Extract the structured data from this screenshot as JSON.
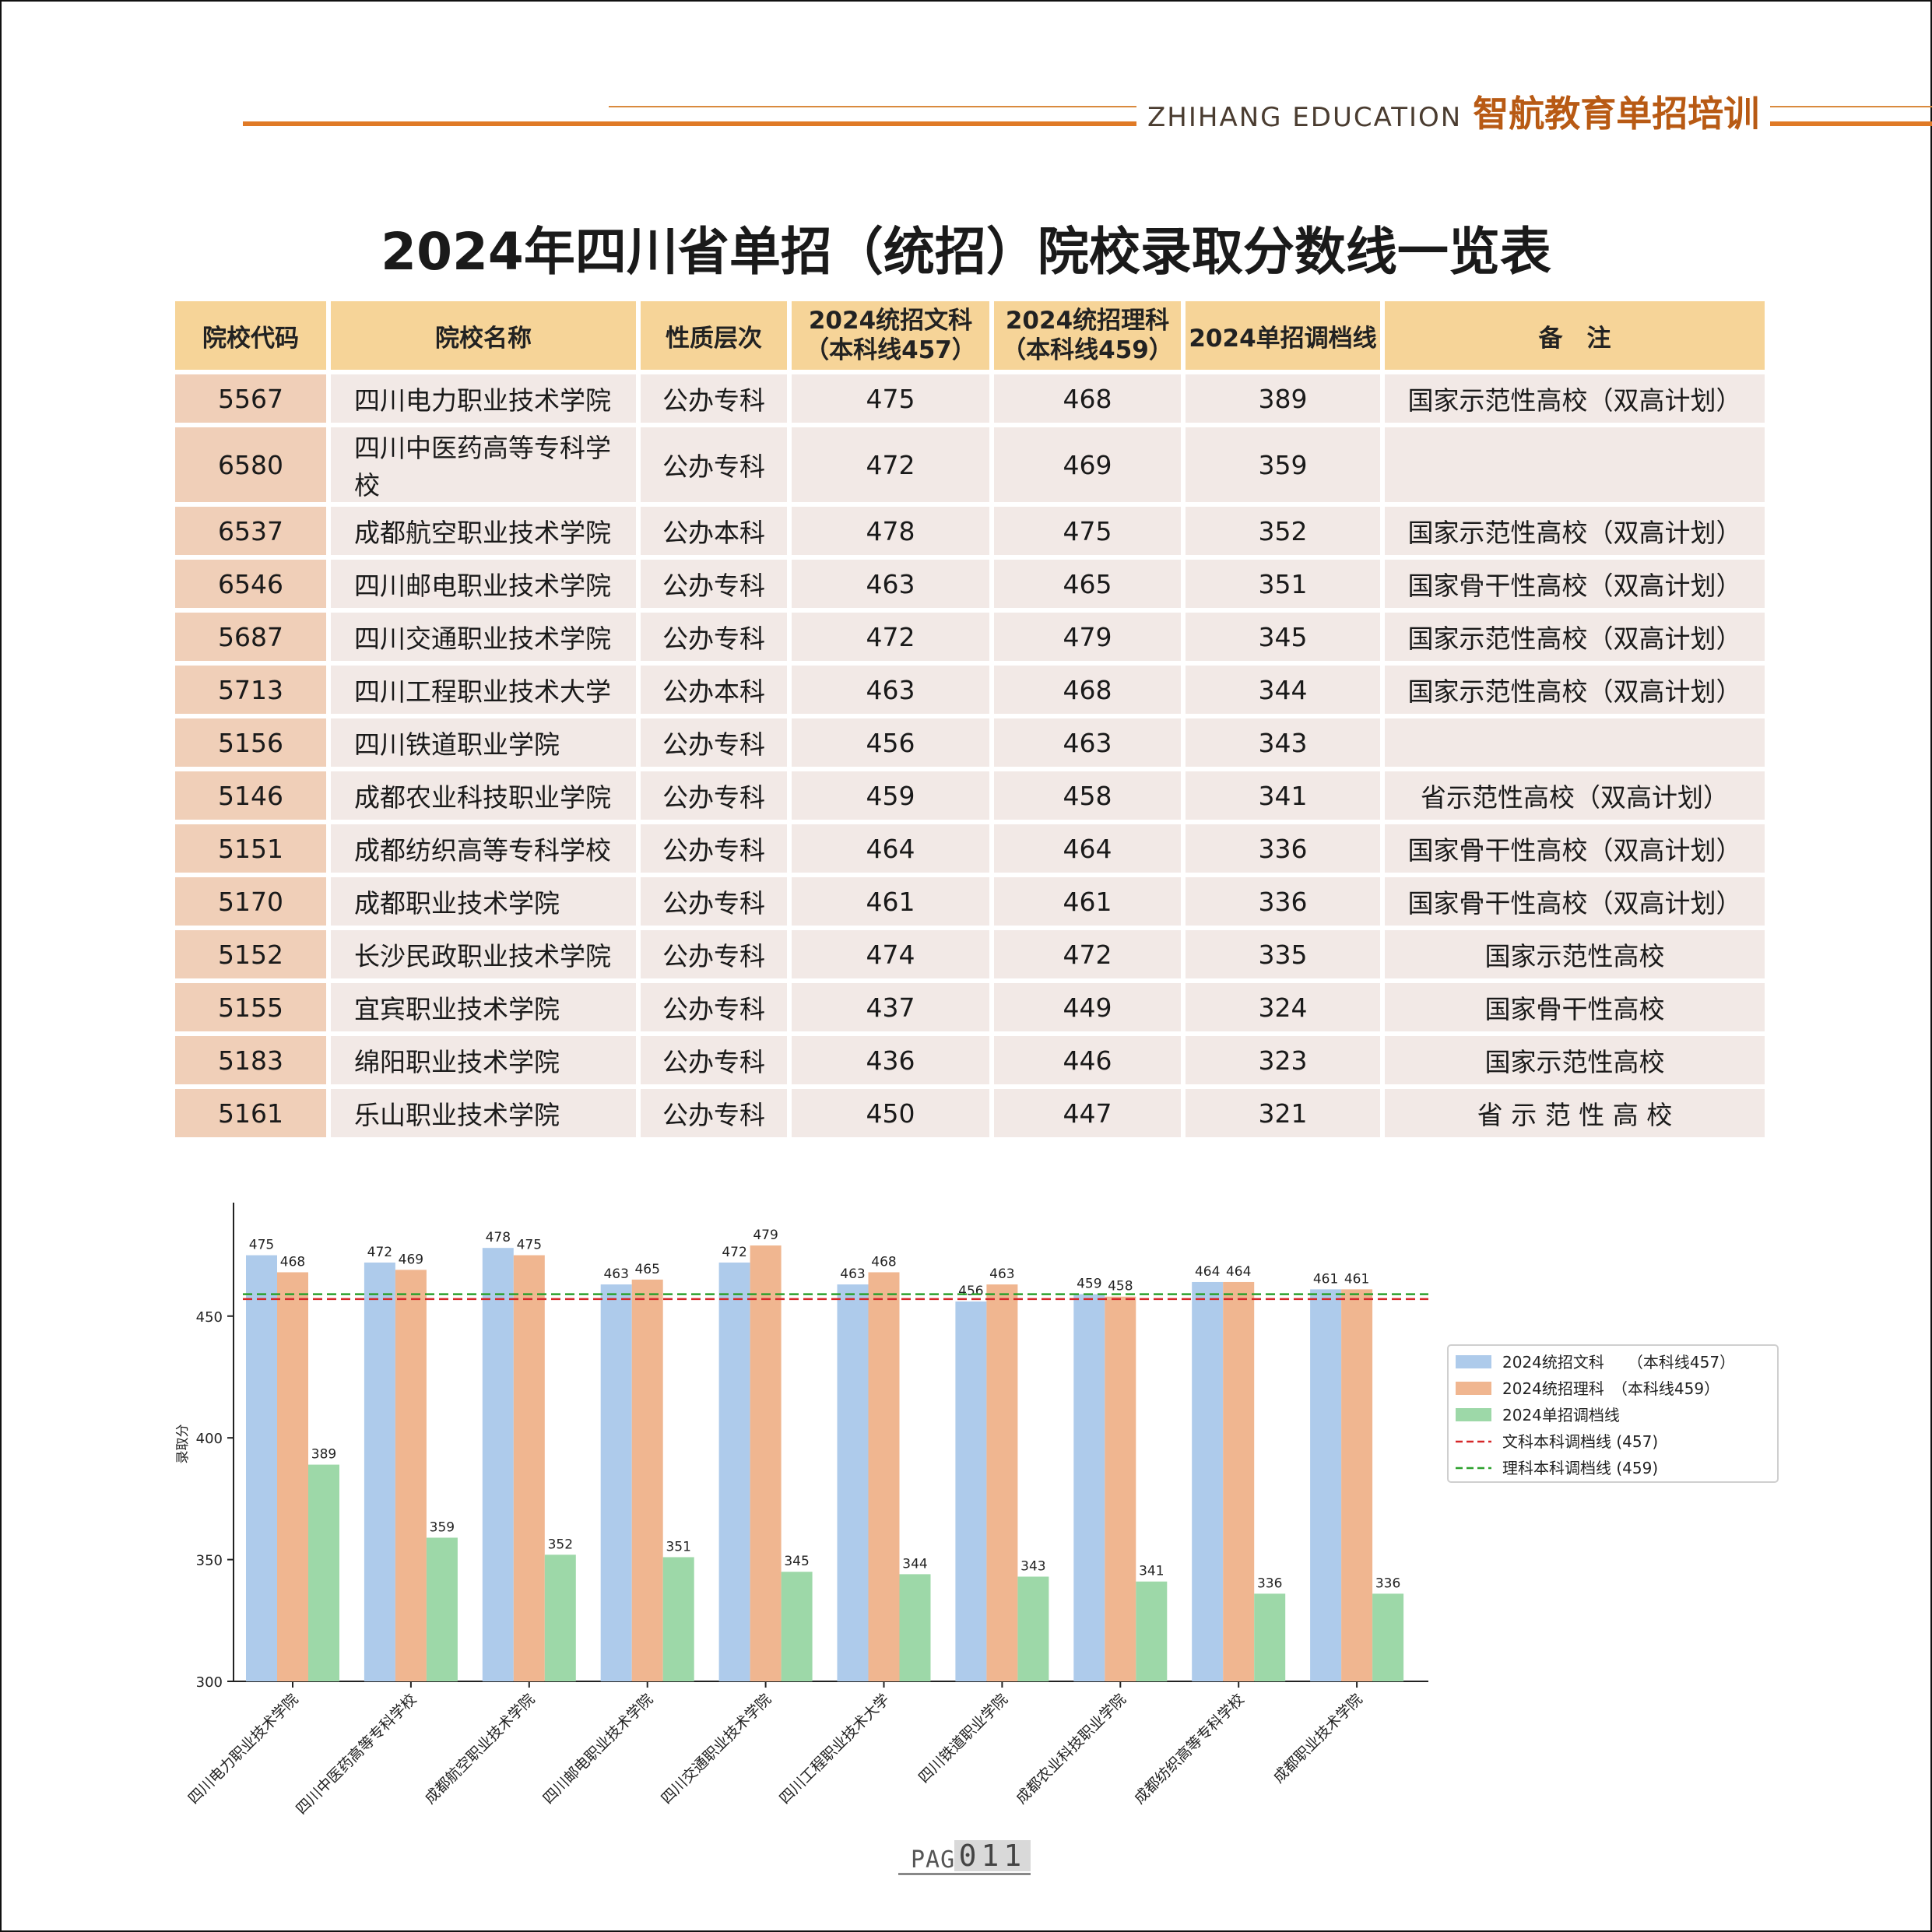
{
  "header": {
    "brand_en": "ZHIHANG EDUCATION",
    "brand_cn": "智航教育单招培训"
  },
  "title": "2024年四川省单招（统招）院校录取分数线一览表",
  "table": {
    "columns": {
      "code": "院校代码",
      "name": "院校名称",
      "type": "性质层次",
      "wen_1": "2024统招文科",
      "wen_2": "（本科线457）",
      "li_1": "2024统招理科",
      "li_2": "（本科线459）",
      "dan": "2024单招调档线",
      "note": "备　注"
    },
    "rows": [
      {
        "code": "5567",
        "name": "四川电力职业技术学院",
        "type": "公办专科",
        "wen": "475",
        "li": "468",
        "dan": "389",
        "note": "国家示范性高校（双高计划）"
      },
      {
        "code": "6580",
        "name": "四川中医药高等专科学校",
        "type": "公办专科",
        "wen": "472",
        "li": "469",
        "dan": "359",
        "note": ""
      },
      {
        "code": "6537",
        "name": "成都航空职业技术学院",
        "type": "公办本科",
        "wen": "478",
        "li": "475",
        "dan": "352",
        "note": "国家示范性高校（双高计划）"
      },
      {
        "code": "6546",
        "name": "四川邮电职业技术学院",
        "type": "公办专科",
        "wen": "463",
        "li": "465",
        "dan": "351",
        "note": "国家骨干性高校（双高计划）"
      },
      {
        "code": "5687",
        "name": "四川交通职业技术学院",
        "type": "公办专科",
        "wen": "472",
        "li": "479",
        "dan": "345",
        "note": "国家示范性高校（双高计划）"
      },
      {
        "code": "5713",
        "name": "四川工程职业技术大学",
        "type": "公办本科",
        "wen": "463",
        "li": "468",
        "dan": "344",
        "note": "国家示范性高校（双高计划）"
      },
      {
        "code": "5156",
        "name": "四川铁道职业学院",
        "type": "公办专科",
        "wen": "456",
        "li": "463",
        "dan": "343",
        "note": ""
      },
      {
        "code": "5146",
        "name": "成都农业科技职业学院",
        "type": "公办专科",
        "wen": "459",
        "li": "458",
        "dan": "341",
        "note": "省示范性高校（双高计划）"
      },
      {
        "code": "5151",
        "name": "成都纺织高等专科学校",
        "type": "公办专科",
        "wen": "464",
        "li": "464",
        "dan": "336",
        "note": "国家骨干性高校（双高计划）"
      },
      {
        "code": "5170",
        "name": "成都职业技术学院",
        "type": "公办专科",
        "wen": "461",
        "li": "461",
        "dan": "336",
        "note": "国家骨干性高校（双高计划）"
      },
      {
        "code": "5152",
        "name": "长沙民政职业技术学院",
        "type": "公办专科",
        "wen": "474",
        "li": "472",
        "dan": "335",
        "note": "国家示范性高校"
      },
      {
        "code": "5155",
        "name": "宜宾职业技术学院",
        "type": "公办专科",
        "wen": "437",
        "li": "449",
        "dan": "324",
        "note": "国家骨干性高校"
      },
      {
        "code": "5183",
        "name": "绵阳职业技术学院",
        "type": "公办专科",
        "wen": "436",
        "li": "446",
        "dan": "323",
        "note": "国家示范性高校"
      },
      {
        "code": "5161",
        "name": "乐山职业技术学院",
        "type": "公办专科",
        "wen": "450",
        "li": "447",
        "dan": "321",
        "note": "省 示 范 性 高 校"
      }
    ]
  },
  "chart_data": {
    "type": "bar",
    "categories": [
      "四川电力职业技术学院",
      "四川中医药高等专科学校",
      "成都航空职业技术学院",
      "四川邮电职业技术学院",
      "四川交通职业技术学院",
      "四川工程职业技术大学",
      "四川铁道职业学院",
      "成都农业科技职业学院",
      "成都纺织高等专科学校",
      "成都职业技术学院"
    ],
    "series": [
      {
        "name": "2024统招文科　　（本科线457）",
        "values": [
          475,
          472,
          478,
          463,
          472,
          463,
          456,
          459,
          464,
          461
        ],
        "color": "#aecbeb"
      },
      {
        "name": "2024统招理科　（本科线459）",
        "values": [
          468,
          469,
          475,
          465,
          479,
          468,
          463,
          458,
          464,
          461
        ],
        "color": "#f0b690"
      },
      {
        "name": "2024单招调档线",
        "values": [
          389,
          359,
          352,
          351,
          345,
          344,
          343,
          341,
          336,
          336
        ],
        "color": "#9dd8a8"
      }
    ],
    "reference_lines": [
      {
        "name": "文科本科调档线 (457)",
        "value": 457,
        "color": "#d62728"
      },
      {
        "name": "理科本科调档线 (459)",
        "value": 459,
        "color": "#2ca02c"
      }
    ],
    "ylabel": "录取分",
    "ylim": [
      300,
      495
    ],
    "yticks": [
      "300",
      "350",
      "400",
      "450"
    ],
    "legend": "right"
  },
  "footer": {
    "page_word": "PAGE",
    "page_num": "011"
  }
}
